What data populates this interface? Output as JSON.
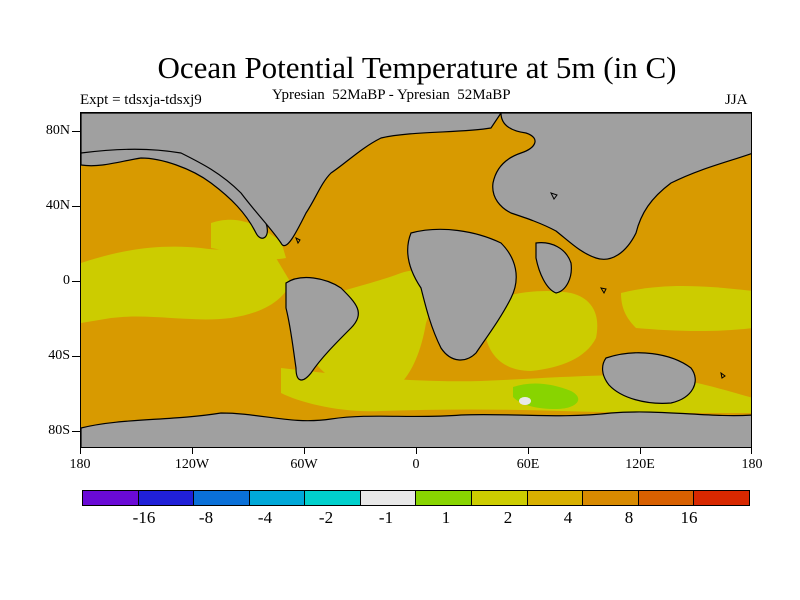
{
  "title": "Ocean Potential Temperature at 5m (in C)",
  "expt_label": "Expt = tdsxja-tdsxj9",
  "subtitle": "Ypresian  52MaBP - Ypresian  52MaBP",
  "season": "JJA",
  "map": {
    "projection": "equirectangular",
    "lon_range": [
      -180,
      180
    ],
    "lat_range": [
      -90,
      90
    ],
    "land_color": "#a0a0a0",
    "coastline_color": "#000000",
    "dominant_ocean_colors": [
      "#d89a00",
      "#cccc00"
    ]
  },
  "y_axis": {
    "ticks": [
      {
        "label": "80N"
      },
      {
        "label": "40N"
      },
      {
        "label": "0"
      },
      {
        "label": "40S"
      },
      {
        "label": "80S"
      }
    ]
  },
  "x_axis": {
    "ticks": [
      {
        "label": "180"
      },
      {
        "label": "120W"
      },
      {
        "label": "60W"
      },
      {
        "label": "0"
      },
      {
        "label": "60E"
      },
      {
        "label": "120E"
      },
      {
        "label": "180"
      }
    ]
  },
  "colorbar": {
    "colors": [
      "#6a0ad6",
      "#2020d8",
      "#0a70d8",
      "#00a8d8",
      "#00d0cc",
      "#e8e8e8",
      "#88d400",
      "#cccc00",
      "#d8b000",
      "#d88a00",
      "#d86000",
      "#d82800"
    ],
    "labels": [
      "-16",
      "-8",
      "-4",
      "-2",
      "-1",
      "1",
      "2",
      "4",
      "8",
      "16"
    ]
  }
}
